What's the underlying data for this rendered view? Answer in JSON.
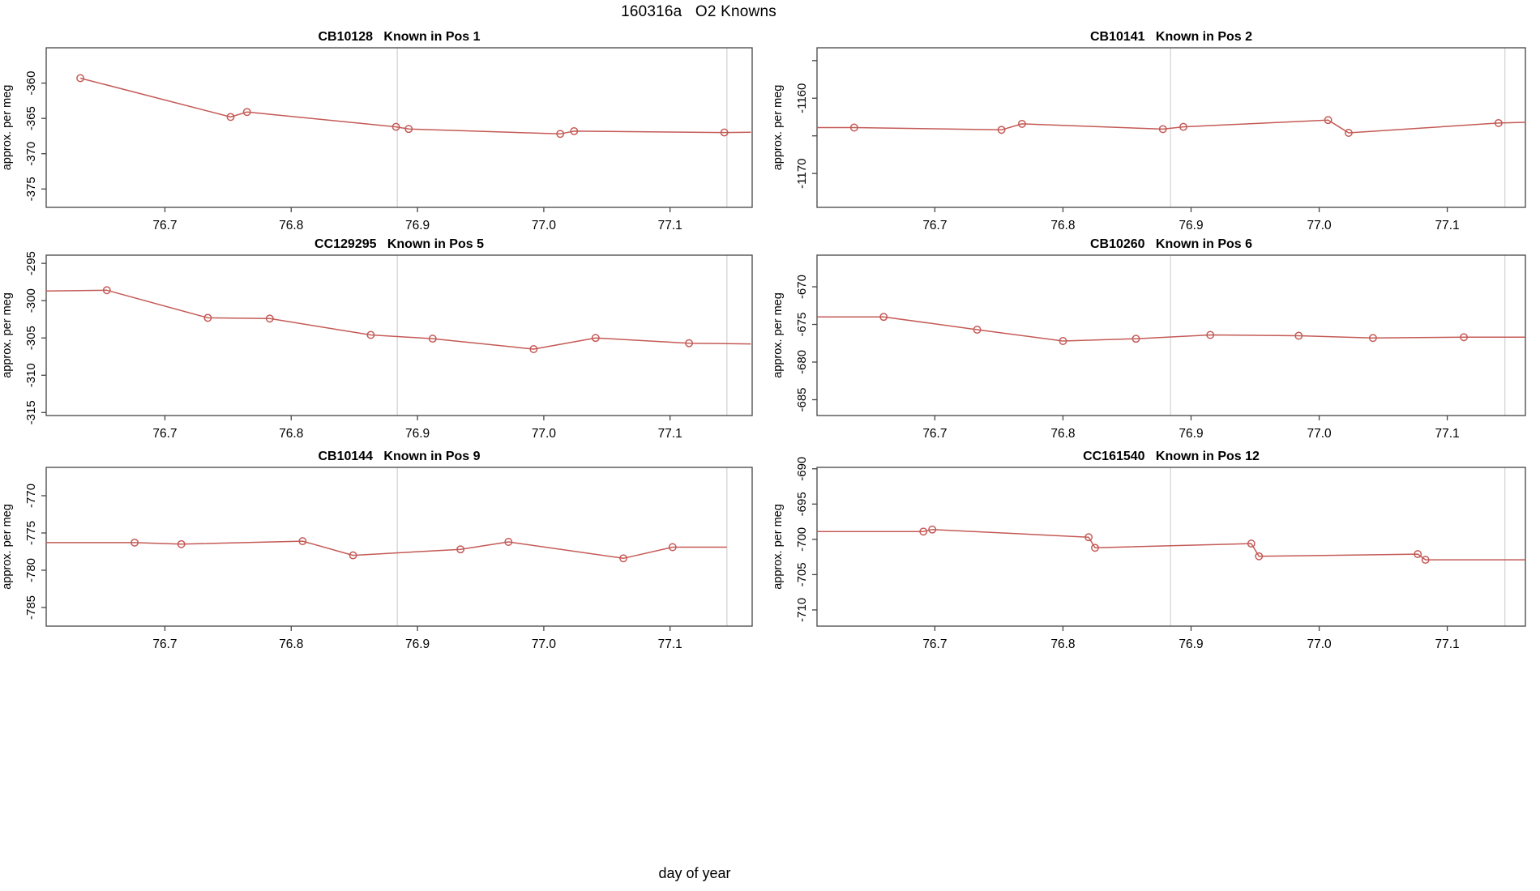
{
  "page": {
    "title": "160316a   O2 Knowns",
    "xlabel": "day of year",
    "ylabel": "approx. per meg"
  },
  "colors": {
    "line": "#c45a56",
    "marker": "#c45a56",
    "ref_line": "#d2d2d2",
    "axis": "#454545",
    "text": "#000000",
    "background": "#ffffff"
  },
  "x_axis": {
    "tick_values": [
      76.7,
      76.8,
      76.9,
      77.0,
      77.1
    ],
    "tick_labels": [
      "76.7",
      "76.8",
      "76.9",
      "77.0",
      "77.1"
    ]
  },
  "ref_lines_x": [
    76.884,
    77.145
  ],
  "chart_data": [
    {
      "type": "line",
      "sample_id": "CB10128",
      "position_label": "Known in Pos 1",
      "ylabel": "approx. per meg",
      "xlim": [
        76.606,
        77.165
      ],
      "ylim": [
        -377.6,
        -355.0
      ],
      "yticks": [
        {
          "value": -360,
          "label": "-360"
        },
        {
          "value": -365,
          "label": "-365"
        },
        {
          "value": -370,
          "label": "-370"
        },
        {
          "value": -375,
          "label": "-375"
        }
      ],
      "x": [
        76.633,
        76.752,
        76.765,
        76.883,
        76.893,
        77.013,
        77.024,
        77.143
      ],
      "y": [
        -359.3,
        -364.8,
        -364.1,
        -366.2,
        -366.5,
        -367.2,
        -366.8,
        -367.0
      ],
      "edge_start": null,
      "edge_end": [
        77.164,
        -366.95
      ]
    },
    {
      "type": "line",
      "sample_id": "CB10141",
      "position_label": "Known in Pos 2",
      "ylabel": "approx. per meg",
      "xlim": [
        76.608,
        77.161
      ],
      "ylim": [
        -1174.5,
        -1153.3
      ],
      "yticks": [
        {
          "value": -1155,
          "label": ""
        },
        {
          "value": -1160,
          "label": "-1160"
        },
        {
          "value": -1165,
          "label": ""
        },
        {
          "value": -1170,
          "label": "-1170"
        }
      ],
      "x": [
        76.637,
        76.752,
        76.768,
        76.878,
        76.894,
        77.007,
        77.023,
        77.14
      ],
      "y": [
        -1163.9,
        -1164.2,
        -1163.4,
        -1164.1,
        -1163.8,
        -1162.9,
        -1164.6,
        -1163.3
      ],
      "edge_start": [
        76.608,
        -1163.9
      ],
      "edge_end": [
        77.161,
        -1163.2
      ]
    },
    {
      "type": "line",
      "sample_id": "CC129295",
      "position_label": "Known in Pos 5",
      "ylabel": "approx. per meg",
      "xlim": [
        76.606,
        77.165
      ],
      "ylim": [
        -315.4,
        -293.9
      ],
      "yticks": [
        {
          "value": -295,
          "label": "-295"
        },
        {
          "value": -300,
          "label": "-300"
        },
        {
          "value": -305,
          "label": "-305"
        },
        {
          "value": -310,
          "label": "-310"
        },
        {
          "value": -315,
          "label": "-315"
        }
      ],
      "x": [
        76.654,
        76.734,
        76.783,
        76.863,
        76.912,
        76.992,
        77.041,
        77.115
      ],
      "y": [
        -298.6,
        -302.3,
        -302.4,
        -304.6,
        -305.1,
        -306.5,
        -305.0,
        -305.7
      ],
      "edge_start": [
        76.606,
        -298.7
      ],
      "edge_end": [
        77.164,
        -305.8
      ]
    },
    {
      "type": "line",
      "sample_id": "CB10260",
      "position_label": "Known in Pos 6",
      "ylabel": "approx. per meg",
      "xlim": [
        76.608,
        77.161
      ],
      "ylim": [
        -687.1,
        -665.8
      ],
      "yticks": [
        {
          "value": -670,
          "label": "-670"
        },
        {
          "value": -675,
          "label": "-675"
        },
        {
          "value": -680,
          "label": "-680"
        },
        {
          "value": -685,
          "label": "-685"
        }
      ],
      "x": [
        76.66,
        76.733,
        76.8,
        76.857,
        76.915,
        76.984,
        77.042,
        77.113
      ],
      "y": [
        -674.0,
        -675.7,
        -677.2,
        -676.9,
        -676.4,
        -676.5,
        -676.8,
        -676.7
      ],
      "edge_start": [
        76.608,
        -674.0
      ],
      "edge_end": [
        77.161,
        -676.7
      ]
    },
    {
      "type": "line",
      "sample_id": "CB10144",
      "position_label": "Known in Pos 9",
      "ylabel": "approx. per meg",
      "xlim": [
        76.606,
        77.165
      ],
      "ylim": [
        -787.5,
        -766.2
      ],
      "yticks": [
        {
          "value": -770,
          "label": "-770"
        },
        {
          "value": -775,
          "label": "-775"
        },
        {
          "value": -780,
          "label": "-780"
        },
        {
          "value": -785,
          "label": "-785"
        }
      ],
      "x": [
        76.676,
        76.713,
        76.809,
        76.849,
        76.934,
        76.972,
        77.063,
        77.102
      ],
      "y": [
        -776.3,
        -776.5,
        -776.1,
        -778.0,
        -777.2,
        -776.2,
        -778.4,
        -776.9
      ],
      "edge_start": [
        76.606,
        -776.3
      ],
      "edge_end": [
        77.145,
        -776.9
      ]
    },
    {
      "type": "line",
      "sample_id": "CC161540",
      "position_label": "Known in Pos 12",
      "ylabel": "approx. per meg",
      "xlim": [
        76.608,
        77.161
      ],
      "ylim": [
        -712.3,
        -689.8
      ],
      "yticks": [
        {
          "value": -690,
          "label": "-690"
        },
        {
          "value": -695,
          "label": "-695"
        },
        {
          "value": -700,
          "label": "-700"
        },
        {
          "value": -705,
          "label": "-705"
        },
        {
          "value": -710,
          "label": "-710"
        }
      ],
      "x": [
        76.691,
        76.698,
        76.82,
        76.825,
        76.947,
        76.953,
        77.077,
        77.083
      ],
      "y": [
        -698.9,
        -698.6,
        -699.7,
        -701.2,
        -700.6,
        -702.4,
        -702.1,
        -702.9
      ],
      "edge_start": [
        76.608,
        -698.9
      ],
      "edge_end": [
        77.161,
        -702.9
      ]
    }
  ]
}
